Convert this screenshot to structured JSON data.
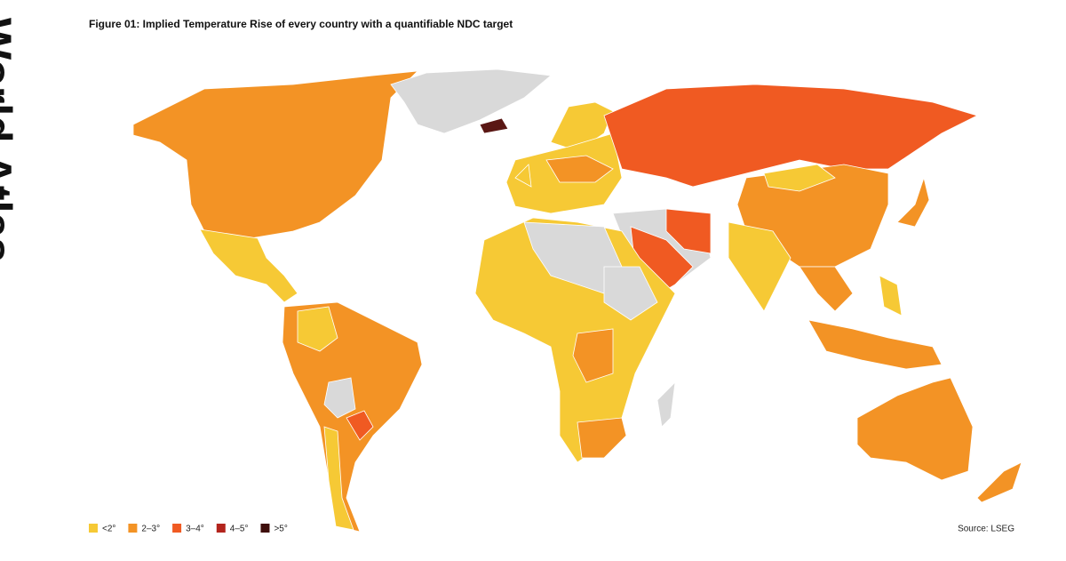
{
  "brand": "World Atlas",
  "title": "Figure 01: Implied Temperature Rise of every country with a quantifiable NDC target",
  "legend": [
    {
      "label": "<2°",
      "color": "#f6c935"
    },
    {
      "label": "2–3°",
      "color": "#f39325"
    },
    {
      "label": "3–4°",
      "color": "#f05a22"
    },
    {
      "label": "4–5°",
      "color": "#b3241d"
    },
    {
      "label": ">5°",
      "color": "#3f0f0c"
    }
  ],
  "source": "Source: LSEG"
}
